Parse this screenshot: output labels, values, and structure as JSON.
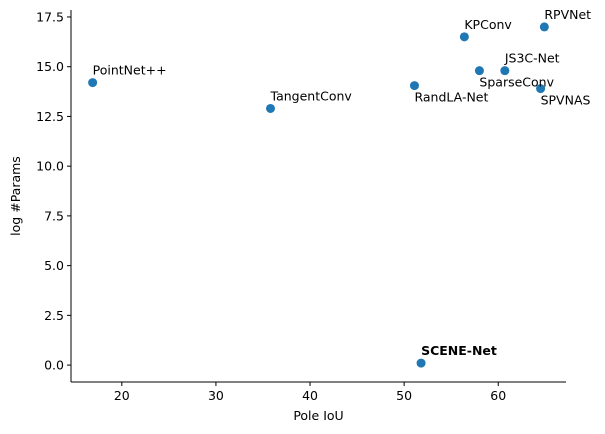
{
  "chart_data": {
    "type": "scatter",
    "title": "",
    "xlabel": "Pole IoU",
    "ylabel": "log #Params",
    "xlim": [
      14.6,
      67.2
    ],
    "ylim": [
      -0.85,
      17.85
    ],
    "xticks": [
      20,
      30,
      40,
      50,
      60
    ],
    "yticks": [
      0.0,
      2.5,
      5.0,
      7.5,
      10.0,
      12.5,
      15.0,
      17.5
    ],
    "grid": false,
    "marker_color": "#1f77b4",
    "points": [
      {
        "label": "PointNet++",
        "x": 16.9,
        "y": 14.2,
        "bold": false,
        "label_pos": "above"
      },
      {
        "label": "TangentConv",
        "x": 35.8,
        "y": 12.9,
        "bold": false,
        "label_pos": "above"
      },
      {
        "label": "RandLA-Net",
        "x": 51.1,
        "y": 14.05,
        "bold": false,
        "label_pos": "below"
      },
      {
        "label": "KPConv",
        "x": 56.4,
        "y": 16.5,
        "bold": false,
        "label_pos": "above"
      },
      {
        "label": "SparseConv",
        "x": 58.0,
        "y": 14.8,
        "bold": false,
        "label_pos": "below"
      },
      {
        "label": "JS3C-Net",
        "x": 60.7,
        "y": 14.8,
        "bold": false,
        "label_pos": "above"
      },
      {
        "label": "SPVNAS",
        "x": 64.5,
        "y": 13.9,
        "bold": false,
        "label_pos": "below"
      },
      {
        "label": "RPVNet",
        "x": 64.9,
        "y": 17.0,
        "bold": false,
        "label_pos": "above"
      },
      {
        "label": "SCENE-Net",
        "x": 51.8,
        "y": 0.1,
        "bold": true,
        "label_pos": "above"
      }
    ]
  }
}
